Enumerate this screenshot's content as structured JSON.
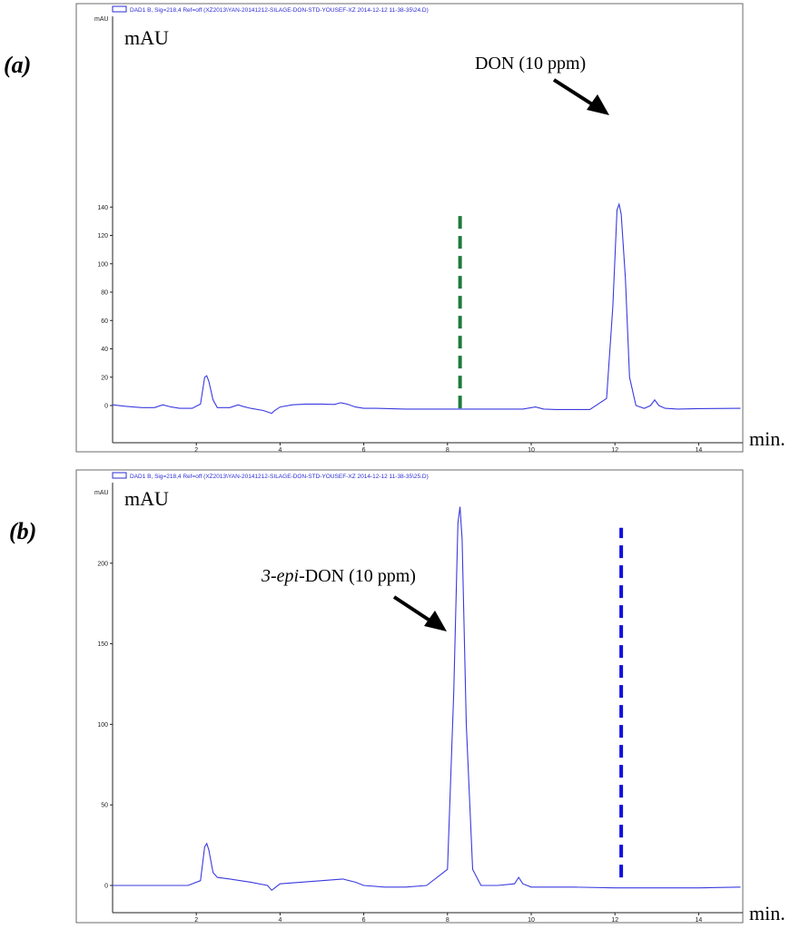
{
  "chart_data": [
    {
      "type": "line",
      "panel_label": "(a)",
      "legend": "DAD1 B, Sig=218,4 Ref=off (XZ2013\\YAN-20141212-SILAGE-DON-STD-YOUSEF-XZ 2014-12-12 11-38-35\\24.D)",
      "ylabel_small": "mAU",
      "ylabel": "mAU",
      "xlabel": "min.",
      "xlim": [
        0,
        15
      ],
      "ylim": [
        -10,
        150
      ],
      "xticks": [
        2,
        4,
        6,
        8,
        10,
        12,
        14
      ],
      "yticks": [
        0,
        20,
        40,
        60,
        80,
        100,
        120,
        140
      ],
      "series": [
        {
          "x": [
            0,
            0.3,
            0.7,
            1.0,
            1.2,
            1.4,
            1.6,
            1.9,
            2.1,
            2.2,
            2.25,
            2.3,
            2.4,
            2.5,
            2.8,
            3.0,
            3.1,
            3.3,
            3.6,
            3.8,
            3.85,
            4.0,
            4.3,
            4.6,
            5.0,
            5.3,
            5.45,
            5.6,
            5.8,
            6.0,
            6.3,
            7.0,
            8.0,
            9.0,
            9.8,
            10.1,
            10.3,
            10.6,
            11.0,
            11.4,
            11.8,
            11.95,
            12.05,
            12.1,
            12.15,
            12.25,
            12.35,
            12.5,
            12.7,
            12.85,
            12.95,
            13.05,
            13.2,
            13.5,
            14.0,
            15.0
          ],
          "y": [
            0.5,
            -0.5,
            -1.5,
            -1.5,
            0.5,
            -1.0,
            -2.0,
            -2.0,
            1.0,
            20,
            21,
            17,
            4,
            -1.5,
            -1.5,
            0.5,
            -0.5,
            -2.0,
            -3.5,
            -5.5,
            -4.0,
            -1.0,
            0.5,
            1.0,
            1.0,
            0.8,
            2.0,
            1.0,
            -1.0,
            -2.0,
            -2.0,
            -2.5,
            -2.5,
            -2.5,
            -2.5,
            -1.0,
            -2.5,
            -2.8,
            -2.8,
            -2.8,
            5,
            70,
            138,
            142,
            135,
            90,
            20,
            0,
            -2.0,
            0,
            4,
            0,
            -2.0,
            -2.5,
            -2.2,
            -2.0
          ]
        }
      ],
      "annotations": [
        {
          "text": "DON (10 ppm)",
          "target_x": 12.0,
          "target_y": 122
        },
        {
          "text": "",
          "style": "vertical dashed marker",
          "color": "#1e7a3c",
          "x": 8.3,
          "y_from": -2,
          "y_to": 137
        }
      ]
    },
    {
      "type": "line",
      "panel_label": "(b)",
      "legend": "DAD1 B, Sig=218,4 Ref=off (XZ2013\\YAN-20141212-SILAGE-DON-STD-YOUSEF-XZ 2014-12-12 11-38-35\\25.D)",
      "ylabel_small": "mAU",
      "ylabel": "mAU",
      "xlabel": "min.",
      "xlim": [
        0,
        15
      ],
      "ylim": [
        -15,
        250
      ],
      "xticks": [
        2,
        4,
        6,
        8,
        10,
        12,
        14
      ],
      "yticks": [
        0,
        50,
        100,
        150,
        200
      ],
      "series": [
        {
          "x": [
            0,
            1.0,
            1.8,
            2.1,
            2.2,
            2.25,
            2.3,
            2.4,
            2.5,
            2.8,
            3.3,
            3.7,
            3.8,
            3.85,
            4.0,
            4.5,
            5.0,
            5.5,
            5.8,
            6.0,
            6.5,
            7.0,
            7.5,
            8.0,
            8.15,
            8.25,
            8.3,
            8.35,
            8.45,
            8.6,
            8.8,
            9.2,
            9.6,
            9.7,
            9.8,
            10.0,
            11.0,
            12.0,
            13.0,
            14.0,
            15.0
          ],
          "y": [
            0,
            0,
            0,
            3,
            24,
            26,
            22,
            8,
            5,
            4,
            2,
            0,
            -3,
            -2,
            1,
            2,
            3,
            4,
            2,
            0,
            -1,
            -1,
            0,
            10,
            120,
            225,
            235,
            215,
            100,
            10,
            0,
            0,
            1,
            5,
            1,
            -1,
            -1,
            -1.5,
            -1.5,
            -1.5,
            -1.0
          ]
        }
      ],
      "annotations": [
        {
          "text": "3-epi-DON (10 ppm)",
          "text_prefix": "3-epi",
          "text_suffix": "-DON (10 ppm)",
          "target_x": 8.1,
          "target_y": 158
        },
        {
          "text": "",
          "style": "vertical dashed marker",
          "color": "#1010e0",
          "x": 12.15,
          "y_from": 5,
          "y_to": 222
        }
      ]
    }
  ]
}
